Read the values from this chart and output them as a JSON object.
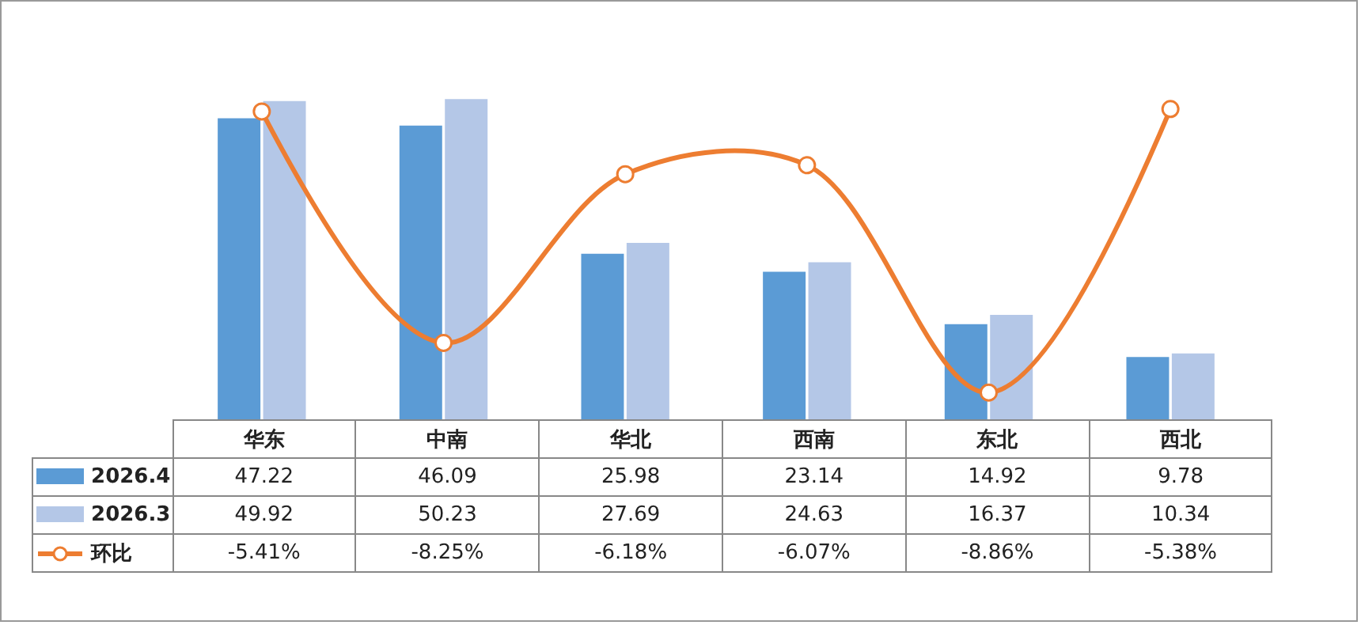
{
  "chart_data": {
    "type": "bar",
    "categories": [
      "华东",
      "中南",
      "华北",
      "西南",
      "东北",
      "西北"
    ],
    "series": [
      {
        "name": "2026.4",
        "color": "#5b9bd5",
        "values": [
          47.22,
          46.09,
          25.98,
          23.14,
          14.92,
          9.78
        ]
      },
      {
        "name": "2026.3",
        "color": "#b4c7e7",
        "values": [
          49.92,
          50.23,
          27.69,
          24.63,
          16.37,
          10.34
        ]
      },
      {
        "name": "环比",
        "type": "line",
        "axis": "y2",
        "color": "#ed7d31",
        "marker": "circle",
        "values": [
          -5.41,
          -8.25,
          -6.18,
          -6.07,
          -8.86,
          -5.38
        ],
        "value_labels": [
          "-5.41%",
          "-8.25%",
          "-6.18%",
          "-6.07%",
          "-8.86%",
          "-5.38%"
        ]
      }
    ],
    "data_labels": true,
    "legend": "bottom left",
    "tick_labels": false,
    "grid": false
  }
}
